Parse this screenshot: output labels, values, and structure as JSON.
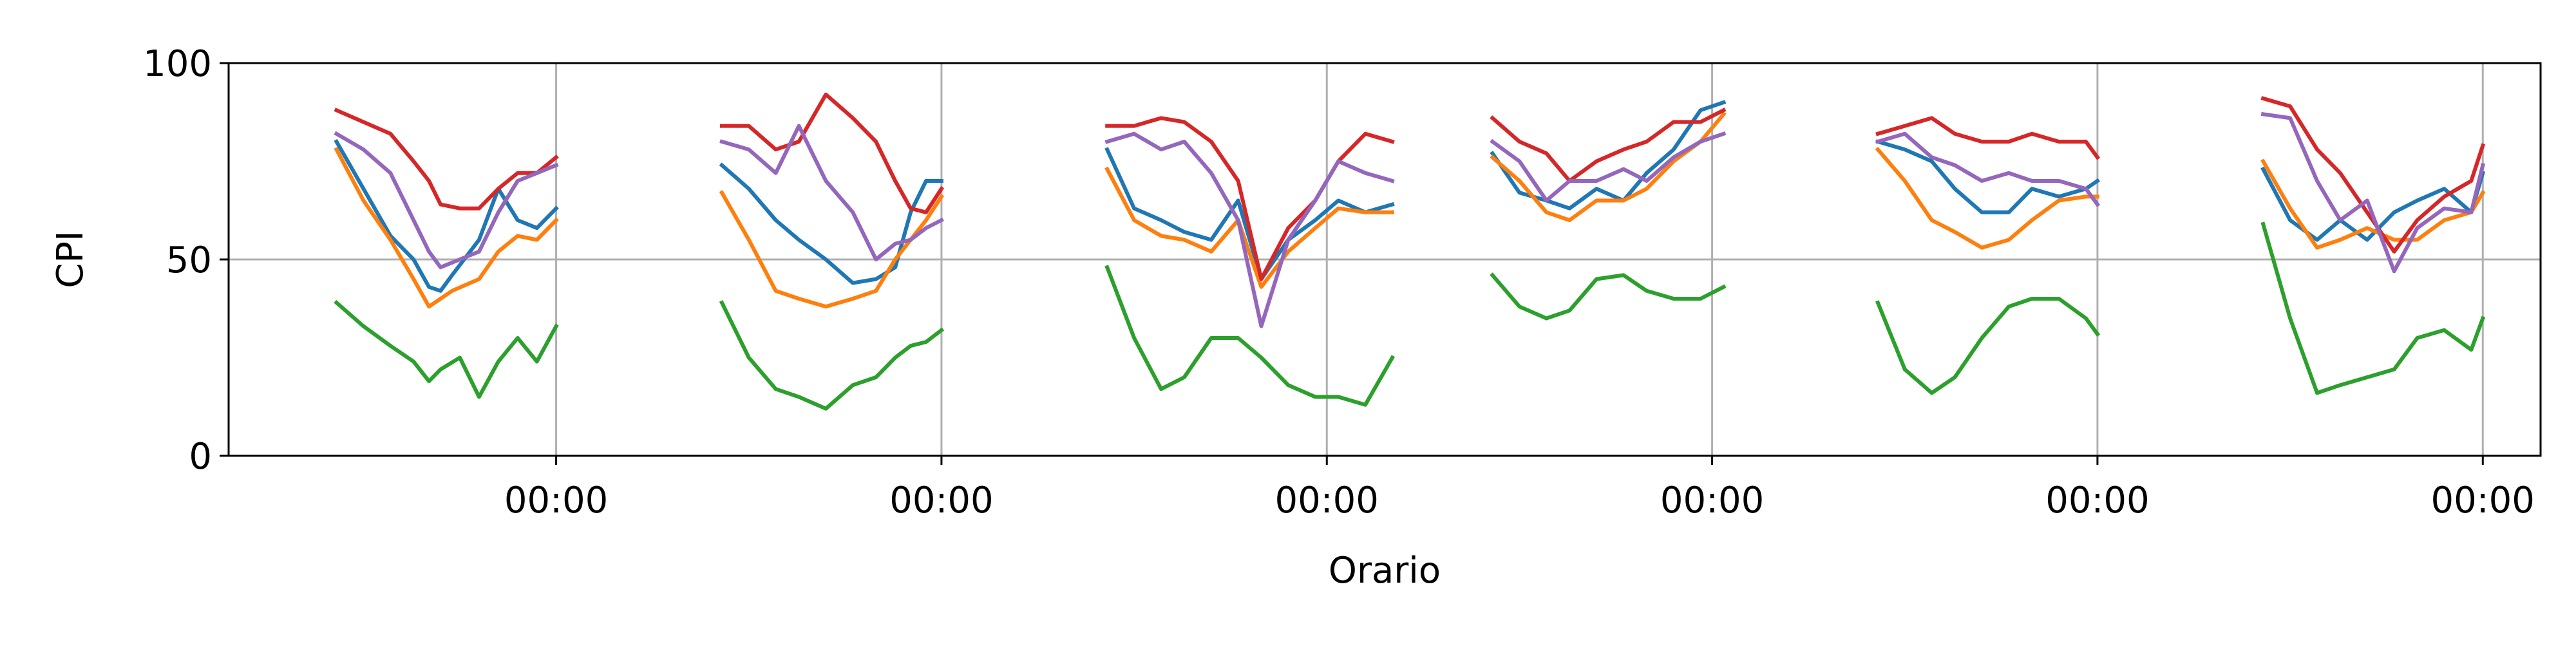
{
  "chart_data": {
    "type": "line",
    "title": "",
    "xlabel": "Orario",
    "ylabel": "CPI",
    "ylim": [
      0,
      100
    ],
    "yticks": [
      0,
      50,
      100
    ],
    "xlim": [
      -0.85,
      5.15
    ],
    "xticks": [
      0,
      1,
      2,
      3,
      4,
      5
    ],
    "xtick_labels": [
      "00:00",
      "00:00",
      "00:00",
      "00:00",
      "00:00",
      "00:00"
    ],
    "grid": true,
    "legend": "none",
    "series": [
      {
        "color": "#1f77b4",
        "segments": [
          {
            "x": [
              -0.57,
              -0.5,
              -0.43,
              -0.37,
              -0.33,
              -0.3,
              -0.27,
              -0.2,
              -0.15,
              -0.1,
              -0.05,
              0.0
            ],
            "y": [
              80,
              68,
              56,
              50,
              43,
              42,
              46,
              55,
              68,
              60,
              58,
              63
            ]
          },
          {
            "x": [
              0.43,
              0.5,
              0.57,
              0.63,
              0.7,
              0.77,
              0.83,
              0.88,
              0.92,
              0.96,
              1.0
            ],
            "y": [
              74,
              68,
              60,
              55,
              50,
              44,
              45,
              48,
              62,
              70,
              70
            ]
          },
          {
            "x": [
              1.43,
              1.5,
              1.57,
              1.63,
              1.7,
              1.77,
              1.83,
              1.9,
              1.97,
              2.03,
              2.1,
              2.17
            ],
            "y": [
              78,
              63,
              60,
              57,
              55,
              65,
              45,
              55,
              60,
              65,
              62,
              64
            ]
          },
          {
            "x": [
              2.43,
              2.5,
              2.57,
              2.63,
              2.7,
              2.77,
              2.83,
              2.9,
              2.97,
              3.03
            ],
            "y": [
              77,
              67,
              65,
              63,
              68,
              65,
              72,
              78,
              88,
              90
            ]
          },
          {
            "x": [
              3.43,
              3.5,
              3.57,
              3.63,
              3.7,
              3.77,
              3.83,
              3.9,
              3.97,
              4.0
            ],
            "y": [
              80,
              78,
              75,
              68,
              62,
              62,
              68,
              66,
              68,
              70
            ]
          },
          {
            "x": [
              4.43,
              4.5,
              4.57,
              4.63,
              4.7,
              4.77,
              4.83,
              4.9,
              4.97,
              5.0
            ],
            "y": [
              73,
              60,
              55,
              60,
              55,
              62,
              65,
              68,
              62,
              72
            ]
          }
        ]
      },
      {
        "color": "#ff7f0e",
        "segments": [
          {
            "x": [
              -0.57,
              -0.5,
              -0.43,
              -0.37,
              -0.33,
              -0.3,
              -0.27,
              -0.2,
              -0.15,
              -0.1,
              -0.05,
              0.0
            ],
            "y": [
              78,
              65,
              55,
              45,
              38,
              40,
              42,
              45,
              52,
              56,
              55,
              60
            ]
          },
          {
            "x": [
              0.43,
              0.5,
              0.57,
              0.63,
              0.7,
              0.77,
              0.83,
              0.88,
              0.92,
              0.96,
              1.0
            ],
            "y": [
              67,
              55,
              42,
              40,
              38,
              40,
              42,
              50,
              55,
              60,
              66
            ]
          },
          {
            "x": [
              1.43,
              1.5,
              1.57,
              1.63,
              1.7,
              1.77,
              1.83,
              1.9,
              1.97,
              2.03,
              2.1,
              2.17
            ],
            "y": [
              73,
              60,
              56,
              55,
              52,
              60,
              43,
              52,
              58,
              63,
              62,
              62
            ]
          },
          {
            "x": [
              2.43,
              2.5,
              2.57,
              2.63,
              2.7,
              2.77,
              2.83,
              2.9,
              2.97,
              3.03
            ],
            "y": [
              76,
              70,
              62,
              60,
              65,
              65,
              68,
              75,
              80,
              87
            ]
          },
          {
            "x": [
              3.43,
              3.5,
              3.57,
              3.63,
              3.7,
              3.77,
              3.83,
              3.9,
              3.97,
              4.0
            ],
            "y": [
              78,
              70,
              60,
              57,
              53,
              55,
              60,
              65,
              66,
              66
            ]
          },
          {
            "x": [
              4.43,
              4.5,
              4.57,
              4.63,
              4.7,
              4.77,
              4.83,
              4.9,
              4.97,
              5.0
            ],
            "y": [
              75,
              63,
              53,
              55,
              58,
              55,
              55,
              60,
              62,
              67
            ]
          }
        ]
      },
      {
        "color": "#2ca02c",
        "segments": [
          {
            "x": [
              -0.57,
              -0.5,
              -0.43,
              -0.37,
              -0.33,
              -0.3,
              -0.25,
              -0.2,
              -0.15,
              -0.1,
              -0.05,
              0.0
            ],
            "y": [
              39,
              33,
              28,
              24,
              19,
              22,
              25,
              15,
              24,
              30,
              24,
              33
            ]
          },
          {
            "x": [
              0.43,
              0.5,
              0.57,
              0.63,
              0.7,
              0.77,
              0.83,
              0.88,
              0.92,
              0.96,
              1.0
            ],
            "y": [
              39,
              25,
              17,
              15,
              12,
              18,
              20,
              25,
              28,
              29,
              32
            ]
          },
          {
            "x": [
              1.43,
              1.5,
              1.57,
              1.63,
              1.7,
              1.77,
              1.83,
              1.9,
              1.97,
              2.03,
              2.1,
              2.17
            ],
            "y": [
              48,
              30,
              17,
              20,
              30,
              30,
              25,
              18,
              15,
              15,
              13,
              25
            ]
          },
          {
            "x": [
              2.43,
              2.5,
              2.57,
              2.63,
              2.7,
              2.77,
              2.83,
              2.9,
              2.97,
              3.03
            ],
            "y": [
              46,
              38,
              35,
              37,
              45,
              46,
              42,
              40,
              40,
              43
            ]
          },
          {
            "x": [
              3.43,
              3.5,
              3.57,
              3.63,
              3.7,
              3.77,
              3.83,
              3.9,
              3.97,
              4.0
            ],
            "y": [
              39,
              22,
              16,
              20,
              30,
              38,
              40,
              40,
              35,
              31
            ]
          },
          {
            "x": [
              4.43,
              4.5,
              4.57,
              4.63,
              4.7,
              4.77,
              4.83,
              4.9,
              4.97,
              5.0
            ],
            "y": [
              59,
              35,
              16,
              18,
              20,
              22,
              30,
              32,
              27,
              35
            ]
          }
        ]
      },
      {
        "color": "#d62728",
        "segments": [
          {
            "x": [
              -0.57,
              -0.5,
              -0.43,
              -0.37,
              -0.33,
              -0.3,
              -0.25,
              -0.2,
              -0.15,
              -0.1,
              -0.05,
              0.0
            ],
            "y": [
              88,
              85,
              82,
              75,
              70,
              64,
              63,
              63,
              68,
              72,
              72,
              76
            ]
          },
          {
            "x": [
              0.43,
              0.5,
              0.57,
              0.63,
              0.7,
              0.77,
              0.83,
              0.88,
              0.92,
              0.96,
              1.0
            ],
            "y": [
              84,
              84,
              78,
              80,
              92,
              86,
              80,
              70,
              63,
              62,
              68
            ]
          },
          {
            "x": [
              1.43,
              1.5,
              1.57,
              1.63,
              1.7,
              1.77,
              1.83,
              1.9,
              1.97,
              2.03,
              2.1,
              2.17
            ],
            "y": [
              84,
              84,
              86,
              85,
              80,
              70,
              45,
              58,
              65,
              75,
              82,
              80
            ]
          },
          {
            "x": [
              2.43,
              2.5,
              2.57,
              2.63,
              2.7,
              2.77,
              2.83,
              2.9,
              2.97,
              3.03
            ],
            "y": [
              86,
              80,
              77,
              70,
              75,
              78,
              80,
              85,
              85,
              88
            ]
          },
          {
            "x": [
              3.43,
              3.5,
              3.57,
              3.63,
              3.7,
              3.77,
              3.83,
              3.9,
              3.97,
              4.0
            ],
            "y": [
              82,
              84,
              86,
              82,
              80,
              80,
              82,
              80,
              80,
              76
            ]
          },
          {
            "x": [
              4.43,
              4.5,
              4.57,
              4.63,
              4.7,
              4.77,
              4.83,
              4.9,
              4.97,
              5.0
            ],
            "y": [
              91,
              89,
              78,
              72,
              62,
              52,
              60,
              66,
              70,
              79
            ]
          }
        ]
      },
      {
        "color": "#9467bd",
        "segments": [
          {
            "x": [
              -0.57,
              -0.5,
              -0.43,
              -0.37,
              -0.33,
              -0.3,
              -0.25,
              -0.2,
              -0.15,
              -0.1,
              -0.05,
              0.0
            ],
            "y": [
              82,
              78,
              72,
              60,
              52,
              48,
              50,
              52,
              62,
              70,
              72,
              74
            ]
          },
          {
            "x": [
              0.43,
              0.5,
              0.57,
              0.63,
              0.7,
              0.77,
              0.83,
              0.88,
              0.92,
              0.96,
              1.0
            ],
            "y": [
              80,
              78,
              72,
              84,
              70,
              62,
              50,
              54,
              55,
              58,
              60
            ]
          },
          {
            "x": [
              1.43,
              1.5,
              1.57,
              1.63,
              1.7,
              1.77,
              1.83,
              1.9,
              1.97,
              2.03,
              2.1,
              2.17
            ],
            "y": [
              80,
              82,
              78,
              80,
              72,
              60,
              33,
              55,
              65,
              75,
              72,
              70
            ]
          },
          {
            "x": [
              2.43,
              2.5,
              2.57,
              2.63,
              2.7,
              2.77,
              2.83,
              2.9,
              2.97,
              3.03
            ],
            "y": [
              80,
              75,
              65,
              70,
              70,
              73,
              70,
              76,
              80,
              82
            ]
          },
          {
            "x": [
              3.43,
              3.5,
              3.57,
              3.63,
              3.7,
              3.77,
              3.83,
              3.9,
              3.97,
              4.0
            ],
            "y": [
              80,
              82,
              76,
              74,
              70,
              72,
              70,
              70,
              68,
              64
            ]
          },
          {
            "x": [
              4.43,
              4.5,
              4.57,
              4.63,
              4.7,
              4.77,
              4.83,
              4.9,
              4.97,
              5.0
            ],
            "y": [
              87,
              86,
              70,
              60,
              65,
              47,
              58,
              63,
              62,
              74
            ]
          }
        ]
      }
    ]
  }
}
